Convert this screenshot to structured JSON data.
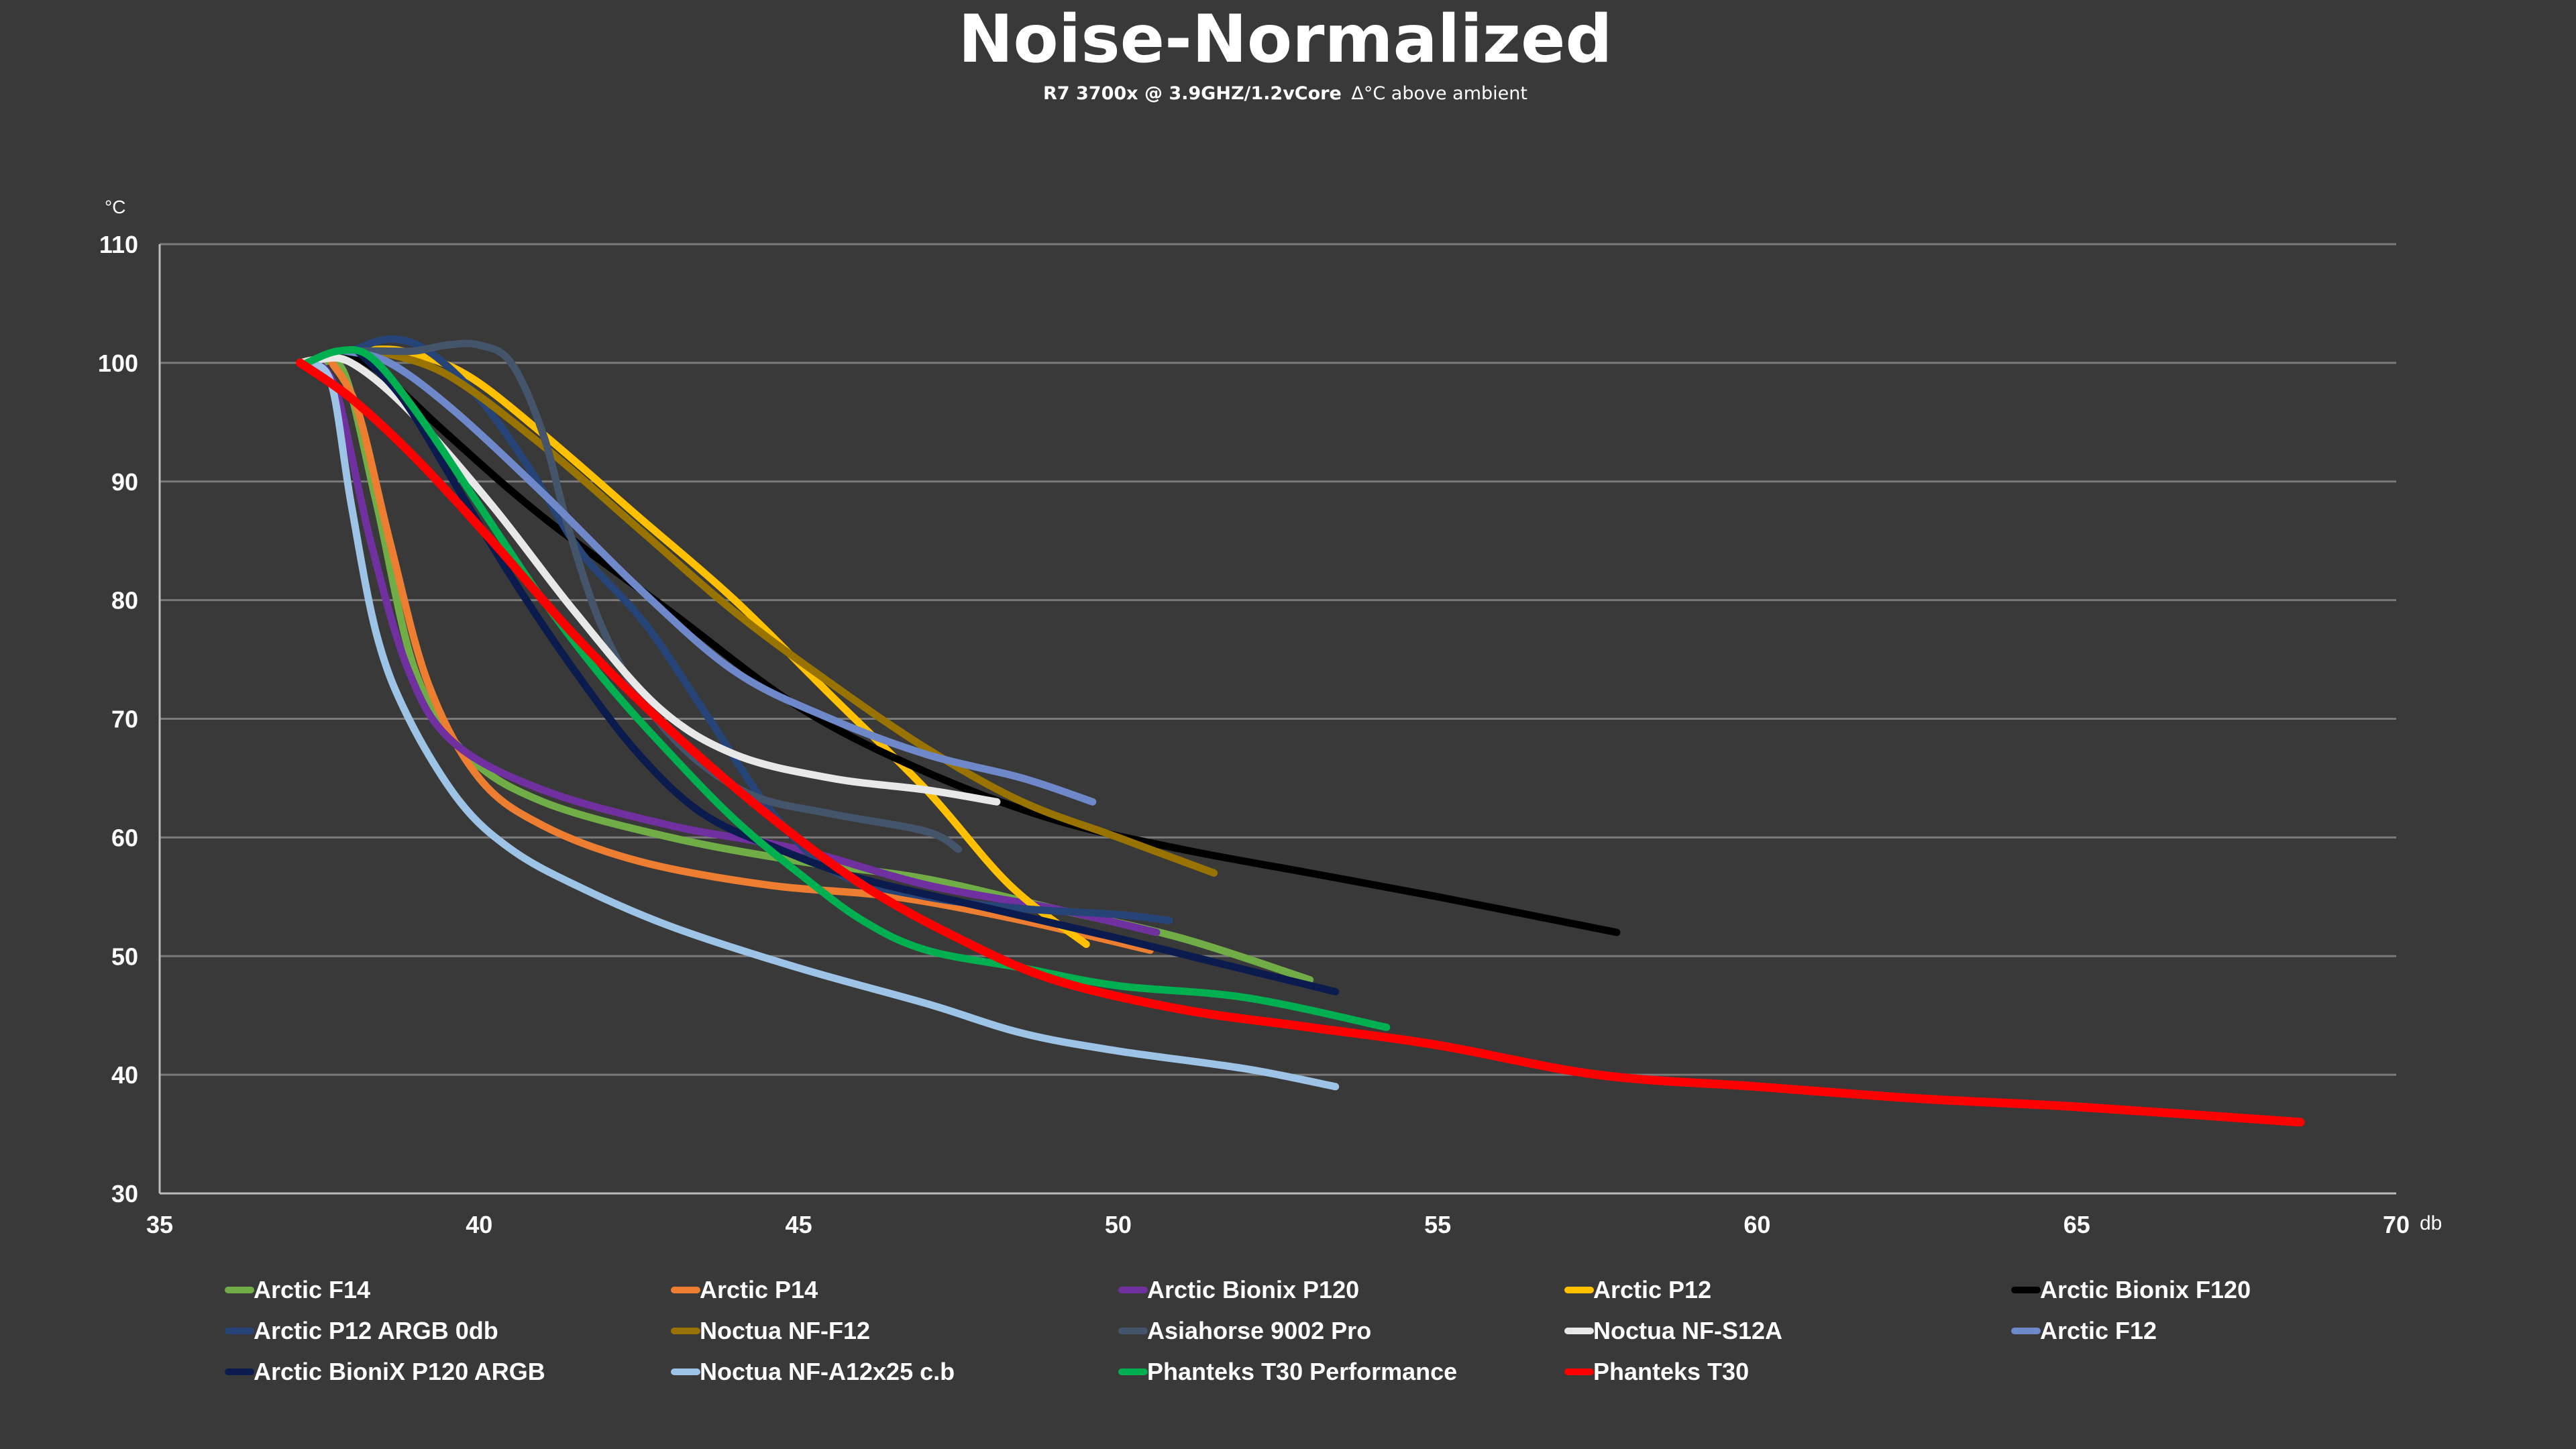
{
  "chart_data": {
    "type": "line",
    "title": "Noise-Normalized",
    "subtitle_bold": "R7 3700x @ 3.9GHZ/1.2vCore",
    "subtitle_rest": "Δ°C above ambient",
    "ylabel": "°C",
    "xlabel": "db",
    "xlim": [
      35,
      70
    ],
    "ylim": [
      30,
      110
    ],
    "x_ticks": [
      35,
      40,
      45,
      50,
      55,
      60,
      65,
      70
    ],
    "y_ticks": [
      30,
      40,
      50,
      60,
      70,
      80,
      90,
      100,
      110
    ],
    "grid": "horizontal",
    "legend_position": "bottom",
    "series": [
      {
        "name": "Arctic F14",
        "color": "#70ad47",
        "points": [
          [
            37.5,
            100
          ],
          [
            37.9,
            99
          ],
          [
            38.4,
            88
          ],
          [
            39.0,
            74
          ],
          [
            39.8,
            67
          ],
          [
            41,
            63
          ],
          [
            43,
            60
          ],
          [
            45,
            58
          ],
          [
            47,
            56.5
          ],
          [
            49,
            54
          ],
          [
            51,
            51.5
          ],
          [
            53,
            48
          ]
        ]
      },
      {
        "name": "Arctic P14",
        "color": "#ed7d31",
        "points": [
          [
            37.7,
            100
          ],
          [
            38.1,
            96
          ],
          [
            38.6,
            85
          ],
          [
            39.2,
            73
          ],
          [
            40,
            65
          ],
          [
            41,
            61
          ],
          [
            42.5,
            58
          ],
          [
            44.5,
            56
          ],
          [
            46.5,
            55
          ],
          [
            48.5,
            53
          ],
          [
            50.5,
            50.5
          ]
        ]
      },
      {
        "name": "Arctic Bionix P120",
        "color": "#7030a0",
        "points": [
          [
            37.5,
            100
          ],
          [
            37.8,
            97
          ],
          [
            38.3,
            85
          ],
          [
            38.9,
            74
          ],
          [
            39.6,
            68
          ],
          [
            41,
            64
          ],
          [
            43,
            61
          ],
          [
            45,
            59
          ],
          [
            47,
            56
          ],
          [
            49,
            54
          ],
          [
            50.6,
            52
          ]
        ]
      },
      {
        "name": "Arctic P12",
        "color": "#ffc000",
        "points": [
          [
            38.1,
            101
          ],
          [
            38.8,
            101
          ],
          [
            39.8,
            99
          ],
          [
            41,
            94
          ],
          [
            42.5,
            87
          ],
          [
            44,
            80
          ],
          [
            45.5,
            72
          ],
          [
            47,
            64
          ],
          [
            48.3,
            56
          ],
          [
            49.5,
            51
          ]
        ]
      },
      {
        "name": "Arctic Bionix F120",
        "color": "#000000",
        "points": [
          [
            37.9,
            101
          ],
          [
            38.5,
            99
          ],
          [
            39.5,
            94
          ],
          [
            41,
            87
          ],
          [
            43,
            79
          ],
          [
            45,
            71
          ],
          [
            47,
            65.5
          ],
          [
            49,
            61.5
          ],
          [
            51,
            59
          ],
          [
            53,
            57
          ],
          [
            55,
            55
          ],
          [
            57.8,
            52
          ]
        ]
      },
      {
        "name": "Arctic P12 ARGB 0db",
        "color": "#264478",
        "points": [
          [
            38.0,
            101
          ],
          [
            38.6,
            102
          ],
          [
            39.2,
            101
          ],
          [
            40,
            97
          ],
          [
            40.8,
            91
          ],
          [
            41.6,
            84
          ],
          [
            42.6,
            78
          ],
          [
            43.6,
            70
          ],
          [
            44.6,
            62
          ],
          [
            45.6,
            57
          ],
          [
            47,
            55
          ],
          [
            48.5,
            54
          ],
          [
            50,
            53.5
          ],
          [
            50.8,
            53
          ]
        ]
      },
      {
        "name": "Noctua NF-F12",
        "color": "#997300",
        "points": [
          [
            38.4,
            101
          ],
          [
            39.5,
            99
          ],
          [
            41,
            93
          ],
          [
            42.5,
            86
          ],
          [
            44,
            79
          ],
          [
            45.5,
            73
          ],
          [
            47,
            67.5
          ],
          [
            48.5,
            63
          ],
          [
            50,
            60
          ],
          [
            51.5,
            57
          ]
        ]
      },
      {
        "name": "Asiahorse 9002 Pro",
        "color": "#44546a",
        "points": [
          [
            38.0,
            101
          ],
          [
            38.5,
            101
          ],
          [
            39.0,
            101
          ],
          [
            39.5,
            101.5
          ],
          [
            40,
            101.5
          ],
          [
            40.5,
            100
          ],
          [
            41,
            94
          ],
          [
            41.4,
            86
          ],
          [
            41.9,
            78
          ],
          [
            42.5,
            72
          ],
          [
            43.3,
            67
          ],
          [
            44.3,
            63.5
          ],
          [
            45.5,
            62
          ],
          [
            47,
            60.5
          ],
          [
            47.5,
            59
          ]
        ]
      },
      {
        "name": "Noctua NF-S12A",
        "color": "#e8e8e8",
        "points": [
          [
            37.2,
            100
          ],
          [
            37.5,
            100.3
          ],
          [
            38.0,
            100
          ],
          [
            38.9,
            96
          ],
          [
            40.2,
            88
          ],
          [
            41.5,
            79
          ],
          [
            42.8,
            71
          ],
          [
            44,
            67
          ],
          [
            45.5,
            65
          ],
          [
            47,
            64
          ],
          [
            48.1,
            63
          ]
        ]
      },
      {
        "name": "Arctic F12",
        "color": "#6e88c9",
        "points": [
          [
            37.9,
            101
          ],
          [
            38.6,
            100
          ],
          [
            39.6,
            96
          ],
          [
            41,
            89
          ],
          [
            42.5,
            81
          ],
          [
            44,
            74
          ],
          [
            45.5,
            70
          ],
          [
            47,
            67
          ],
          [
            48.5,
            65
          ],
          [
            49.6,
            63
          ]
        ]
      },
      {
        "name": "Arctic BioniX P120 ARGB",
        "color": "#0c1b4d",
        "points": [
          [
            38.1,
            101
          ],
          [
            38.8,
            97
          ],
          [
            39.6,
            90
          ],
          [
            40.5,
            82
          ],
          [
            41.5,
            74
          ],
          [
            42.5,
            67
          ],
          [
            43.5,
            62
          ],
          [
            44.7,
            59
          ],
          [
            46,
            56.5
          ],
          [
            48,
            54
          ],
          [
            50,
            51.5
          ],
          [
            51.5,
            49.5
          ],
          [
            53.4,
            47
          ]
        ]
      },
      {
        "name": "Noctua NF-A12x25 c.b",
        "color": "#9dc3e6",
        "points": [
          [
            37.4,
            100
          ],
          [
            37.7,
            98
          ],
          [
            38.0,
            88
          ],
          [
            38.4,
            77
          ],
          [
            38.9,
            70
          ],
          [
            39.7,
            63
          ],
          [
            40.5,
            59
          ],
          [
            41.5,
            56
          ],
          [
            43,
            52.5
          ],
          [
            45,
            49
          ],
          [
            47,
            46
          ],
          [
            48.5,
            43.5
          ],
          [
            50,
            42
          ],
          [
            52,
            40.5
          ],
          [
            53.4,
            39
          ]
        ]
      },
      {
        "name": "Phanteks T30 Performance",
        "color": "#00b050",
        "points": [
          [
            37.3,
            100
          ],
          [
            37.8,
            101
          ],
          [
            38.3,
            100.5
          ],
          [
            39,
            96
          ],
          [
            40,
            88
          ],
          [
            41,
            80
          ],
          [
            42,
            73
          ],
          [
            43,
            67
          ],
          [
            44,
            61.5
          ],
          [
            45,
            57
          ],
          [
            46,
            53
          ],
          [
            47,
            50.5
          ],
          [
            48.5,
            49
          ],
          [
            50,
            47.5
          ],
          [
            52,
            46.5
          ],
          [
            54.2,
            44
          ]
        ]
      },
      {
        "name": "Phanteks T30",
        "color": "#ff0000",
        "points": [
          [
            37.2,
            100
          ],
          [
            38,
            97
          ],
          [
            39,
            92
          ],
          [
            40.2,
            85
          ],
          [
            41.5,
            77
          ],
          [
            43,
            69
          ],
          [
            44.5,
            62
          ],
          [
            46,
            56
          ],
          [
            47.5,
            51.5
          ],
          [
            49,
            48
          ],
          [
            51,
            45.5
          ],
          [
            53,
            44
          ],
          [
            55,
            42.5
          ],
          [
            57.5,
            40
          ],
          [
            60,
            39
          ],
          [
            62.5,
            38
          ],
          [
            65,
            37.3
          ],
          [
            68.5,
            36
          ]
        ]
      }
    ]
  }
}
